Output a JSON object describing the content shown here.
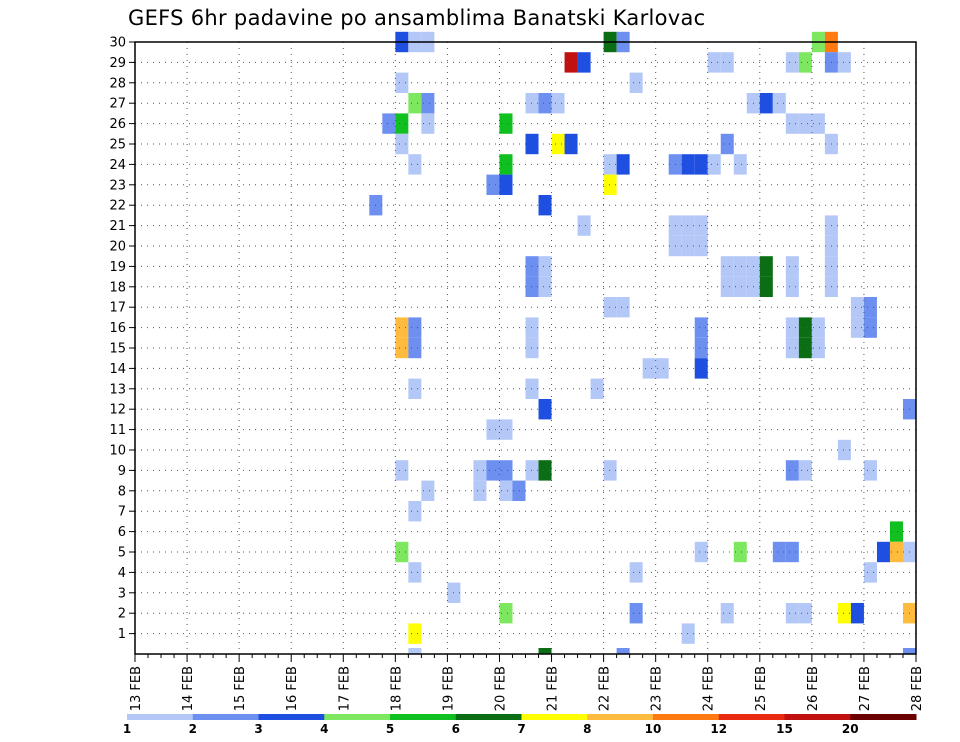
{
  "chart_data": {
    "type": "heatmap",
    "title": "GEFS 6hr padavine po ansamblima Banatski Karlovac",
    "x_tick_labels": [
      "13 FEB",
      "14 FEB",
      "15 FEB",
      "16 FEB",
      "17 FEB",
      "18 FEB",
      "19 FEB",
      "20 FEB",
      "21 FEB",
      "22 FEB",
      "23 FEB",
      "24 FEB",
      "25 FEB",
      "26 FEB",
      "27 FEB",
      "28 FEB"
    ],
    "y_tick_labels": [
      "1",
      "2",
      "3",
      "4",
      "5",
      "6",
      "7",
      "8",
      "9",
      "10",
      "11",
      "12",
      "13",
      "14",
      "15",
      "16",
      "17",
      "18",
      "19",
      "20",
      "21",
      "22",
      "23",
      "24",
      "25",
      "26",
      "27",
      "28",
      "29",
      "30"
    ],
    "x_range": [
      "13 FEB 00Z",
      "28 FEB 00Z"
    ],
    "y_range": [
      0,
      30
    ],
    "time_step_hours": 6,
    "grid": true,
    "legend_position": "bottom",
    "legend": {
      "levels": [
        "1",
        "2",
        "3",
        "4",
        "5",
        "6",
        "7",
        "8",
        "10",
        "12",
        "15",
        "20"
      ],
      "colors": [
        "#b4c8f8",
        "#6d8ff0",
        "#1f4fe0",
        "#7de85f",
        "#10c020",
        "#0b6e14",
        "#ffff00",
        "#ffbb3e",
        "#ff7a10",
        "#e82a10",
        "#c01010",
        "#6a0000"
      ]
    },
    "cells": [
      {
        "member": 30,
        "time": "18 FEB 00Z",
        "level": 3
      },
      {
        "member": 30,
        "time": "18 FEB 06Z",
        "level": 1
      },
      {
        "member": 30,
        "time": "18 FEB 12Z",
        "level": 1
      },
      {
        "member": 30,
        "time": "22 FEB 00Z",
        "level": 6
      },
      {
        "member": 30,
        "time": "22 FEB 06Z",
        "level": 2
      },
      {
        "member": 30,
        "time": "26 FEB 00Z",
        "level": 4
      },
      {
        "member": 30,
        "time": "26 FEB 06Z",
        "level": 10
      },
      {
        "member": 29,
        "time": "21 FEB 06Z",
        "level": 15
      },
      {
        "member": 29,
        "time": "21 FEB 12Z",
        "level": 3
      },
      {
        "member": 29,
        "time": "24 FEB 00Z",
        "level": 1
      },
      {
        "member": 29,
        "time": "24 FEB 06Z",
        "level": 1
      },
      {
        "member": 29,
        "time": "25 FEB 12Z",
        "level": 1
      },
      {
        "member": 29,
        "time": "25 FEB 18Z",
        "level": 4
      },
      {
        "member": 29,
        "time": "26 FEB 06Z",
        "level": 2
      },
      {
        "member": 29,
        "time": "26 FEB 12Z",
        "level": 1
      },
      {
        "member": 28,
        "time": "18 FEB 00Z",
        "level": 1
      },
      {
        "member": 28,
        "time": "22 FEB 12Z",
        "level": 1
      },
      {
        "member": 27,
        "time": "18 FEB 06Z",
        "level": 4
      },
      {
        "member": 27,
        "time": "18 FEB 12Z",
        "level": 2
      },
      {
        "member": 27,
        "time": "20 FEB 12Z",
        "level": 1
      },
      {
        "member": 27,
        "time": "20 FEB 18Z",
        "level": 2
      },
      {
        "member": 27,
        "time": "21 FEB 00Z",
        "level": 1
      },
      {
        "member": 27,
        "time": "24 FEB 18Z",
        "level": 1
      },
      {
        "member": 27,
        "time": "25 FEB 00Z",
        "level": 3
      },
      {
        "member": 27,
        "time": "25 FEB 06Z",
        "level": 1
      },
      {
        "member": 26,
        "time": "17 FEB 18Z",
        "level": 2
      },
      {
        "member": 26,
        "time": "18 FEB 00Z",
        "level": 5
      },
      {
        "member": 26,
        "time": "18 FEB 12Z",
        "level": 1
      },
      {
        "member": 26,
        "time": "20 FEB 00Z",
        "level": 5
      },
      {
        "member": 26,
        "time": "25 FEB 12Z",
        "level": 1
      },
      {
        "member": 26,
        "time": "25 FEB 18Z",
        "level": 1
      },
      {
        "member": 26,
        "time": "26 FEB 00Z",
        "level": 1
      },
      {
        "member": 25,
        "time": "18 FEB 00Z",
        "level": 1
      },
      {
        "member": 25,
        "time": "20 FEB 12Z",
        "level": 3
      },
      {
        "member": 25,
        "time": "21 FEB 00Z",
        "level": 7
      },
      {
        "member": 25,
        "time": "21 FEB 06Z",
        "level": 3
      },
      {
        "member": 25,
        "time": "24 FEB 06Z",
        "level": 2
      },
      {
        "member": 25,
        "time": "26 FEB 06Z",
        "level": 1
      },
      {
        "member": 24,
        "time": "18 FEB 06Z",
        "level": 1
      },
      {
        "member": 24,
        "time": "20 FEB 00Z",
        "level": 5
      },
      {
        "member": 24,
        "time": "22 FEB 00Z",
        "level": 1
      },
      {
        "member": 24,
        "time": "22 FEB 06Z",
        "level": 3
      },
      {
        "member": 24,
        "time": "23 FEB 06Z",
        "level": 2
      },
      {
        "member": 24,
        "time": "23 FEB 12Z",
        "level": 3
      },
      {
        "member": 24,
        "time": "23 FEB 18Z",
        "level": 3
      },
      {
        "member": 24,
        "time": "24 FEB 00Z",
        "level": 1
      },
      {
        "member": 24,
        "time": "24 FEB 12Z",
        "level": 1
      },
      {
        "member": 23,
        "time": "19 FEB 18Z",
        "level": 2
      },
      {
        "member": 23,
        "time": "20 FEB 00Z",
        "level": 3
      },
      {
        "member": 23,
        "time": "22 FEB 00Z",
        "level": 7
      },
      {
        "member": 22,
        "time": "17 FEB 12Z",
        "level": 2
      },
      {
        "member": 22,
        "time": "20 FEB 18Z",
        "level": 3
      },
      {
        "member": 21,
        "time": "21 FEB 12Z",
        "level": 1
      },
      {
        "member": 21,
        "time": "23 FEB 06Z",
        "level": 1
      },
      {
        "member": 21,
        "time": "23 FEB 12Z",
        "level": 1
      },
      {
        "member": 21,
        "time": "23 FEB 18Z",
        "level": 1
      },
      {
        "member": 21,
        "time": "26 FEB 06Z",
        "level": 1
      },
      {
        "member": 20,
        "time": "23 FEB 06Z",
        "level": 1
      },
      {
        "member": 20,
        "time": "23 FEB 12Z",
        "level": 1
      },
      {
        "member": 20,
        "time": "23 FEB 18Z",
        "level": 1
      },
      {
        "member": 20,
        "time": "26 FEB 06Z",
        "level": 1
      },
      {
        "member": 19,
        "time": "20 FEB 12Z",
        "level": 2
      },
      {
        "member": 19,
        "time": "20 FEB 18Z",
        "level": 1
      },
      {
        "member": 19,
        "time": "24 FEB 06Z",
        "level": 1
      },
      {
        "member": 19,
        "time": "24 FEB 12Z",
        "level": 1
      },
      {
        "member": 19,
        "time": "24 FEB 18Z",
        "level": 1
      },
      {
        "member": 19,
        "time": "25 FEB 00Z",
        "level": 6
      },
      {
        "member": 19,
        "time": "25 FEB 12Z",
        "level": 1
      },
      {
        "member": 19,
        "time": "26 FEB 06Z",
        "level": 1
      },
      {
        "member": 18,
        "time": "20 FEB 12Z",
        "level": 2
      },
      {
        "member": 18,
        "time": "20 FEB 18Z",
        "level": 1
      },
      {
        "member": 18,
        "time": "24 FEB 06Z",
        "level": 1
      },
      {
        "member": 18,
        "time": "24 FEB 12Z",
        "level": 1
      },
      {
        "member": 18,
        "time": "24 FEB 18Z",
        "level": 1
      },
      {
        "member": 18,
        "time": "25 FEB 00Z",
        "level": 6
      },
      {
        "member": 18,
        "time": "25 FEB 12Z",
        "level": 1
      },
      {
        "member": 18,
        "time": "26 FEB 06Z",
        "level": 1
      },
      {
        "member": 17,
        "time": "22 FEB 00Z",
        "level": 1
      },
      {
        "member": 17,
        "time": "22 FEB 06Z",
        "level": 1
      },
      {
        "member": 17,
        "time": "26 FEB 18Z",
        "level": 1
      },
      {
        "member": 17,
        "time": "27 FEB 00Z",
        "level": 2
      },
      {
        "member": 16,
        "time": "18 FEB 00Z",
        "level": 8
      },
      {
        "member": 16,
        "time": "18 FEB 06Z",
        "level": 2
      },
      {
        "member": 16,
        "time": "20 FEB 12Z",
        "level": 1
      },
      {
        "member": 16,
        "time": "23 FEB 18Z",
        "level": 2
      },
      {
        "member": 16,
        "time": "25 FEB 12Z",
        "level": 1
      },
      {
        "member": 16,
        "time": "25 FEB 18Z",
        "level": 6
      },
      {
        "member": 16,
        "time": "26 FEB 00Z",
        "level": 1
      },
      {
        "member": 16,
        "time": "26 FEB 18Z",
        "level": 1
      },
      {
        "member": 16,
        "time": "27 FEB 00Z",
        "level": 2
      },
      {
        "member": 15,
        "time": "18 FEB 00Z",
        "level": 8
      },
      {
        "member": 15,
        "time": "18 FEB 06Z",
        "level": 2
      },
      {
        "member": 15,
        "time": "20 FEB 12Z",
        "level": 1
      },
      {
        "member": 15,
        "time": "23 FEB 18Z",
        "level": 2
      },
      {
        "member": 15,
        "time": "25 FEB 12Z",
        "level": 1
      },
      {
        "member": 15,
        "time": "25 FEB 18Z",
        "level": 6
      },
      {
        "member": 15,
        "time": "26 FEB 00Z",
        "level": 1
      },
      {
        "member": 14,
        "time": "22 FEB 18Z",
        "level": 1
      },
      {
        "member": 14,
        "time": "23 FEB 00Z",
        "level": 1
      },
      {
        "member": 14,
        "time": "23 FEB 18Z",
        "level": 3
      },
      {
        "member": 13,
        "time": "18 FEB 06Z",
        "level": 1
      },
      {
        "member": 13,
        "time": "20 FEB 12Z",
        "level": 1
      },
      {
        "member": 13,
        "time": "21 FEB 18Z",
        "level": 1
      },
      {
        "member": 12,
        "time": "20 FEB 18Z",
        "level": 3
      },
      {
        "member": 12,
        "time": "27 FEB 18Z",
        "level": 2
      },
      {
        "member": 11,
        "time": "19 FEB 18Z",
        "level": 1
      },
      {
        "member": 11,
        "time": "20 FEB 00Z",
        "level": 1
      },
      {
        "member": 10,
        "time": "26 FEB 12Z",
        "level": 1
      },
      {
        "member": 9,
        "time": "18 FEB 00Z",
        "level": 1
      },
      {
        "member": 9,
        "time": "19 FEB 12Z",
        "level": 1
      },
      {
        "member": 9,
        "time": "19 FEB 18Z",
        "level": 2
      },
      {
        "member": 9,
        "time": "20 FEB 00Z",
        "level": 2
      },
      {
        "member": 9,
        "time": "20 FEB 12Z",
        "level": 1
      },
      {
        "member": 9,
        "time": "20 FEB 18Z",
        "level": 6
      },
      {
        "member": 9,
        "time": "22 FEB 00Z",
        "level": 1
      },
      {
        "member": 9,
        "time": "25 FEB 12Z",
        "level": 2
      },
      {
        "member": 9,
        "time": "25 FEB 18Z",
        "level": 1
      },
      {
        "member": 9,
        "time": "27 FEB 00Z",
        "level": 1
      },
      {
        "member": 8,
        "time": "18 FEB 12Z",
        "level": 1
      },
      {
        "member": 8,
        "time": "19 FEB 12Z",
        "level": 1
      },
      {
        "member": 8,
        "time": "20 FEB 00Z",
        "level": 1
      },
      {
        "member": 8,
        "time": "20 FEB 06Z",
        "level": 2
      },
      {
        "member": 7,
        "time": "18 FEB 06Z",
        "level": 1
      },
      {
        "member": 6,
        "time": "27 FEB 12Z",
        "level": 5
      },
      {
        "member": 5,
        "time": "18 FEB 00Z",
        "level": 4
      },
      {
        "member": 5,
        "time": "23 FEB 18Z",
        "level": 1
      },
      {
        "member": 5,
        "time": "24 FEB 12Z",
        "level": 4
      },
      {
        "member": 5,
        "time": "25 FEB 06Z",
        "level": 2
      },
      {
        "member": 5,
        "time": "25 FEB 12Z",
        "level": 2
      },
      {
        "member": 5,
        "time": "27 FEB 06Z",
        "level": 3
      },
      {
        "member": 5,
        "time": "27 FEB 12Z",
        "level": 8
      },
      {
        "member": 5,
        "time": "27 FEB 18Z",
        "level": 1
      },
      {
        "member": 4,
        "time": "18 FEB 06Z",
        "level": 1
      },
      {
        "member": 4,
        "time": "22 FEB 12Z",
        "level": 1
      },
      {
        "member": 4,
        "time": "27 FEB 00Z",
        "level": 1
      },
      {
        "member": 3,
        "time": "19 FEB 00Z",
        "level": 1
      },
      {
        "member": 2,
        "time": "20 FEB 00Z",
        "level": 4
      },
      {
        "member": 2,
        "time": "22 FEB 12Z",
        "level": 2
      },
      {
        "member": 2,
        "time": "24 FEB 06Z",
        "level": 1
      },
      {
        "member": 2,
        "time": "25 FEB 12Z",
        "level": 1
      },
      {
        "member": 2,
        "time": "25 FEB 18Z",
        "level": 1
      },
      {
        "member": 2,
        "time": "26 FEB 12Z",
        "level": 7
      },
      {
        "member": 2,
        "time": "26 FEB 18Z",
        "level": 3
      },
      {
        "member": 2,
        "time": "27 FEB 18Z",
        "level": 8
      },
      {
        "member": 1,
        "time": "18 FEB 06Z",
        "level": 7
      },
      {
        "member": 1,
        "time": "23 FEB 12Z",
        "level": 1
      },
      {
        "member": 0,
        "time": "18 FEB 06Z",
        "level": 1
      },
      {
        "member": 0,
        "time": "20 FEB 18Z",
        "level": 6
      },
      {
        "member": 0,
        "time": "22 FEB 06Z",
        "level": 2
      },
      {
        "member": 0,
        "time": "27 FEB 18Z",
        "level": 2
      }
    ]
  }
}
